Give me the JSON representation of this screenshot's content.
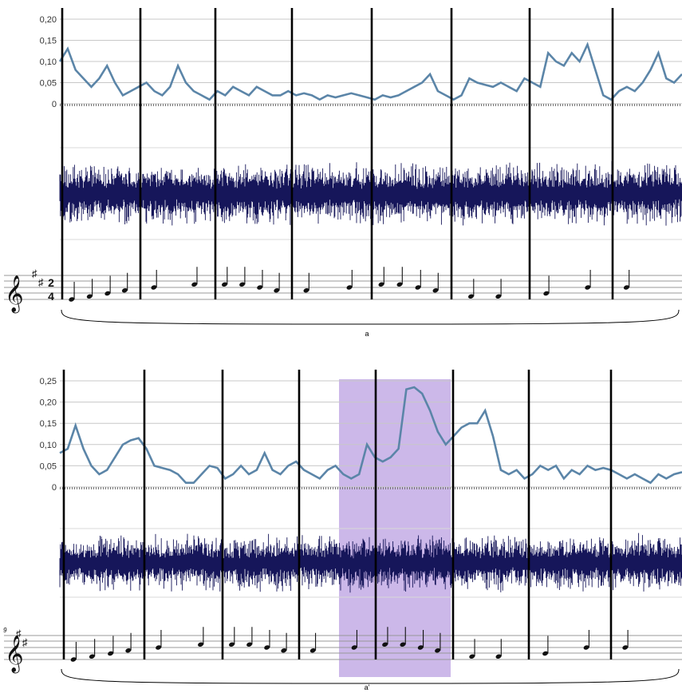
{
  "chart_data": [
    {
      "type": "line",
      "title": "",
      "xlabel": "",
      "ylabel": "",
      "ylim": [
        0,
        0.2
      ],
      "y_ticks": [
        "0,20",
        "0,15",
        "0,10",
        "0,05",
        "0"
      ],
      "grid": true,
      "measures": 8,
      "section_label": "a",
      "measure_number": "",
      "time_signature": [
        "2",
        "4"
      ],
      "key_signature": "D major (2 sharps)",
      "highlight": null,
      "series": [
        {
          "values": [
            0.1,
            0.13,
            0.08,
            0.06,
            0.04,
            0.06,
            0.09,
            0.05,
            0.02,
            0.03,
            0.04,
            0.05,
            0.03,
            0.02,
            0.04,
            0.09,
            0.05,
            0.03,
            0.02,
            0.01,
            0.03,
            0.02,
            0.04,
            0.03,
            0.02,
            0.04,
            0.03,
            0.02,
            0.02,
            0.03,
            0.02,
            0.025,
            0.02,
            0.01,
            0.02,
            0.015,
            0.02,
            0.025,
            0.02,
            0.015,
            0.01,
            0.02,
            0.015,
            0.02,
            0.03,
            0.04,
            0.05,
            0.07,
            0.03,
            0.02,
            0.01,
            0.02,
            0.06,
            0.05,
            0.045,
            0.04,
            0.05,
            0.04,
            0.03,
            0.06,
            0.05,
            0.04,
            0.12,
            0.1,
            0.09,
            0.12,
            0.1,
            0.14,
            0.08,
            0.02,
            0.01,
            0.03,
            0.04,
            0.03,
            0.05,
            0.08,
            0.12,
            0.06,
            0.05,
            0.07
          ]
        }
      ]
    },
    {
      "type": "line",
      "title": "",
      "xlabel": "",
      "ylabel": "",
      "ylim": [
        0,
        0.25
      ],
      "y_ticks": [
        "0,25",
        "0,20",
        "0,15",
        "0,10",
        "0,05",
        "0"
      ],
      "grid": true,
      "measures": 8,
      "section_label": "a'",
      "measure_number": "9",
      "key_signature": "D major (2 sharps)",
      "highlight": {
        "from_measure": 4.5,
        "to_measure": 5.95,
        "color": "#b79ae0"
      },
      "series": [
        {
          "values": [
            0.08,
            0.09,
            0.145,
            0.09,
            0.05,
            0.03,
            0.04,
            0.07,
            0.1,
            0.11,
            0.115,
            0.09,
            0.05,
            0.045,
            0.04,
            0.03,
            0.01,
            0.01,
            0.03,
            0.05,
            0.045,
            0.02,
            0.03,
            0.05,
            0.03,
            0.04,
            0.08,
            0.04,
            0.03,
            0.05,
            0.06,
            0.04,
            0.03,
            0.02,
            0.04,
            0.05,
            0.03,
            0.02,
            0.03,
            0.1,
            0.07,
            0.06,
            0.07,
            0.09,
            0.23,
            0.235,
            0.22,
            0.18,
            0.13,
            0.1,
            0.12,
            0.14,
            0.15,
            0.15,
            0.18,
            0.12,
            0.04,
            0.03,
            0.04,
            0.02,
            0.03,
            0.05,
            0.04,
            0.05,
            0.02,
            0.04,
            0.03,
            0.05,
            0.04,
            0.045,
            0.04,
            0.03,
            0.02,
            0.03,
            0.02,
            0.01,
            0.03,
            0.02,
            0.03,
            0.035
          ]
        }
      ]
    }
  ]
}
